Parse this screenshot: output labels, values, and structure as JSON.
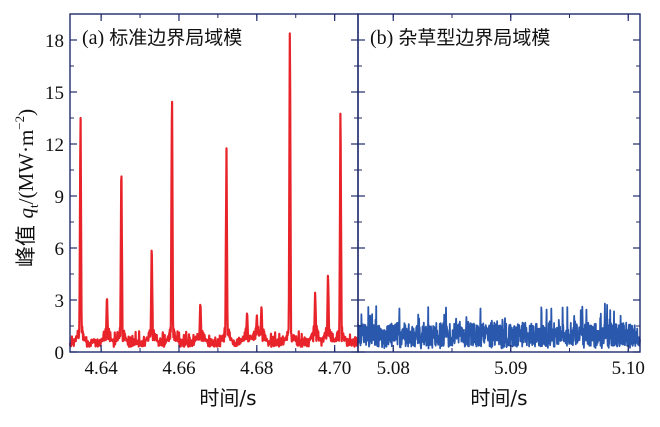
{
  "ylabel": {
    "prefix": "峰值 ",
    "q": "q",
    "sub": "t",
    "units_open": "/(MW·m",
    "units_exp": "−2",
    "units_close": ")"
  },
  "chart_data": [
    {
      "type": "line",
      "panel_label": "(a)",
      "title": "标准边界局域模",
      "xlabel": "时间/s",
      "xlim": [
        4.632,
        4.706
      ],
      "ylim": [
        0,
        19.5
      ],
      "xticks": [
        4.64,
        4.66,
        4.68,
        4.7
      ],
      "xtick_labels": [
        "4.64",
        "4.66",
        "4.68",
        "4.70"
      ],
      "yticks": [
        0,
        3,
        6,
        9,
        12,
        15,
        18
      ],
      "ytick_labels": [
        "0",
        "3",
        "6",
        "9",
        "12",
        "15",
        "18"
      ],
      "series": [
        {
          "color": "#e8242a",
          "baseline": [
            0.3,
            1.2
          ],
          "spikes": [
            [
              4.6347,
              13.5
            ],
            [
              4.6415,
              2.8
            ],
            [
              4.6452,
              10.9
            ],
            [
              4.653,
              5.9
            ],
            [
              4.6582,
              15.3
            ],
            [
              4.6655,
              2.4
            ],
            [
              4.6722,
              11.4
            ],
            [
              4.6775,
              1.8
            ],
            [
              4.68,
              1.6
            ],
            [
              4.6812,
              2.2
            ],
            [
              4.6885,
              18.6
            ],
            [
              4.695,
              3.0
            ],
            [
              4.6983,
              4.2
            ],
            [
              4.7015,
              14.2
            ]
          ]
        }
      ]
    },
    {
      "type": "line",
      "panel_label": "(b)",
      "title": "杂草型边界局域模",
      "xlabel": "时间/s",
      "xlim": [
        5.077,
        5.101
      ],
      "ylim": [
        0,
        19.5
      ],
      "xticks": [
        5.08,
        5.09,
        5.1
      ],
      "xtick_labels": [
        "5.08",
        "5.09",
        "5.10"
      ],
      "series": [
        {
          "color": "#2a58ad",
          "range": [
            0.2,
            2.8
          ],
          "typical": [
            0.3,
            1.7
          ]
        }
      ]
    }
  ]
}
